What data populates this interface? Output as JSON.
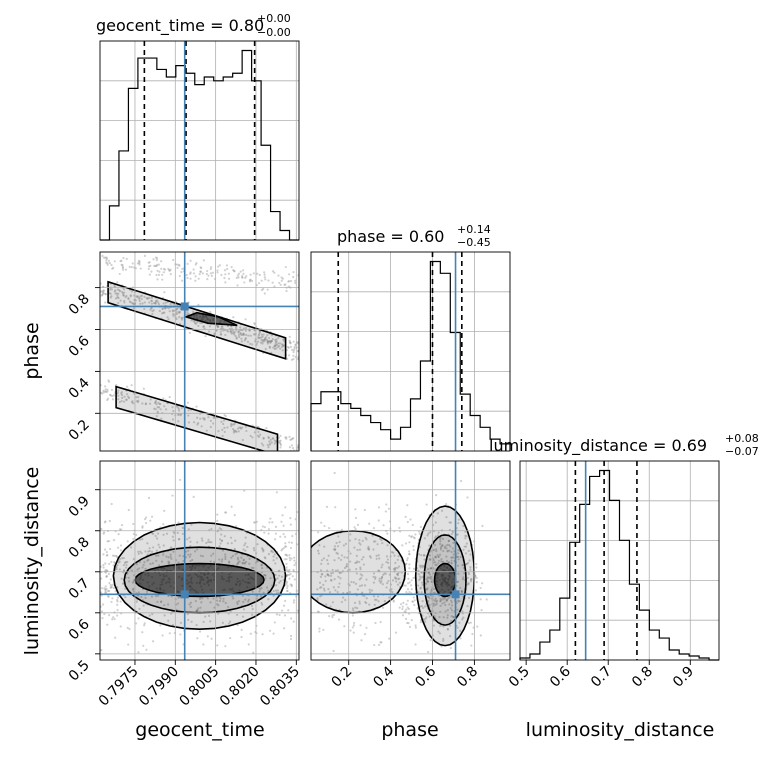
{
  "chart_data": {
    "type": "corner",
    "parameters": [
      "geocent_time",
      "phase",
      "luminosity_distance"
    ],
    "truths": [
      0.79935,
      0.71,
      0.645
    ],
    "titles": [
      {
        "param": "geocent_time",
        "prefix": "geocent_time = 0.80",
        "sup": "+0.00",
        "sub": "−0.00"
      },
      {
        "param": "phase",
        "prefix": "phase = 0.60",
        "sup": "+0.14",
        "sub": "−0.45"
      },
      {
        "param": "luminosity_distance",
        "prefix": "luminosity_distance = 0.69",
        "sup": "+0.08",
        "sub": "−0.07"
      }
    ],
    "axes": {
      "geocent_time": {
        "range": [
          0.7962,
          0.8036
        ],
        "ticks": [
          0.7975,
          0.799,
          0.8005,
          0.802,
          0.8035
        ],
        "tick_labels": [
          "0.7975",
          "0.7990",
          "0.8005",
          "0.8020",
          "0.8035"
        ]
      },
      "phase": {
        "range": [
          0.02,
          0.97
        ],
        "ticks": [
          0.2,
          0.4,
          0.6,
          0.8
        ],
        "tick_labels": [
          "0.2",
          "0.4",
          "0.6",
          "0.8"
        ]
      },
      "luminosity_distance": {
        "range": [
          0.485,
          0.97
        ],
        "ticks": [
          0.5,
          0.6,
          0.7,
          0.8,
          0.9
        ],
        "tick_labels": [
          "0.5",
          "0.6",
          "0.7",
          "0.8",
          "0.9"
        ]
      }
    },
    "quantiles": {
      "geocent_time": [
        0.79785,
        0.7994,
        0.80195
      ],
      "phase": [
        0.15,
        0.6,
        0.74
      ],
      "luminosity_distance": [
        0.62,
        0.69,
        0.77
      ]
    },
    "histograms": {
      "geocent_time": {
        "edges_range": [
          0.7962,
          0.8036
        ],
        "counts": [
          0,
          18,
          47,
          80,
          96,
          96,
          90,
          86,
          92,
          88,
          82,
          86,
          84,
          86,
          88,
          100,
          84,
          50,
          15,
          5,
          0
        ]
      },
      "phase": {
        "edges_range": [
          0.02,
          0.97
        ],
        "counts": [
          20,
          25,
          25,
          20,
          18,
          15,
          12,
          9,
          5,
          10,
          22,
          38,
          80,
          75,
          50,
          24,
          15,
          10,
          5,
          3
        ]
      },
      "luminosity_distance": {
        "edges_range": [
          0.485,
          0.97
        ],
        "counts": [
          1,
          3,
          9,
          15,
          31,
          59,
          78,
          92,
          95,
          80,
          60,
          38,
          25,
          15,
          11,
          5,
          3,
          2,
          1,
          0
        ]
      }
    },
    "grid": true
  },
  "labels": {
    "x": [
      "geocent_time",
      "phase",
      "luminosity_distance"
    ],
    "y": [
      "phase",
      "luminosity_distance"
    ]
  }
}
